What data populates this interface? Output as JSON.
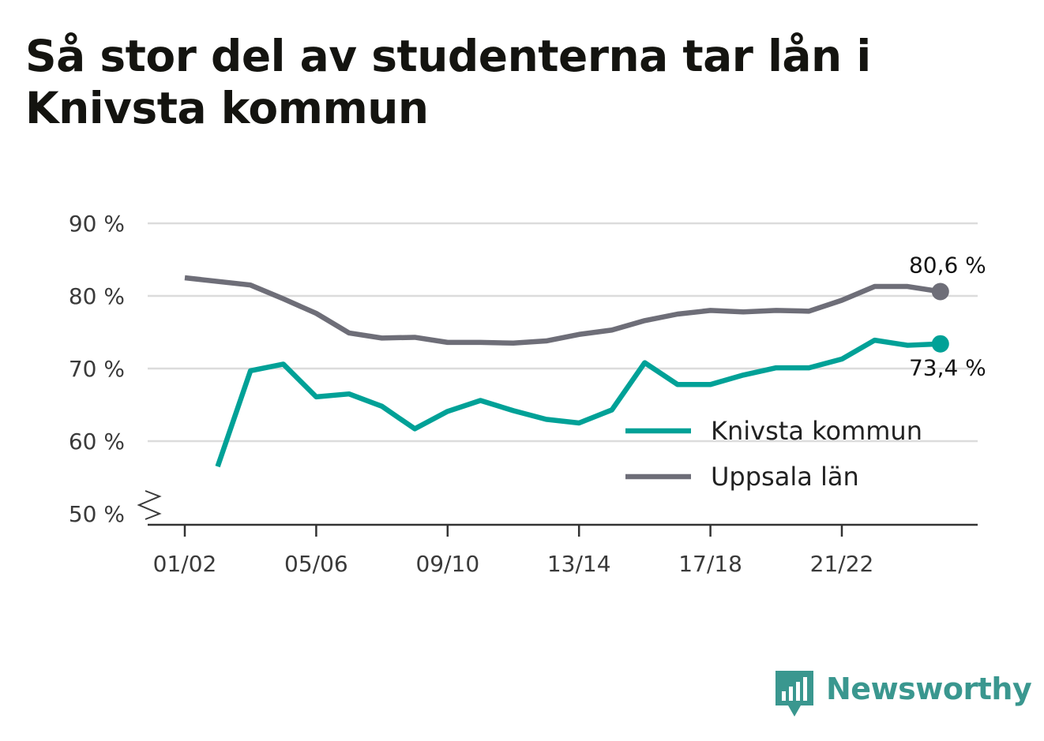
{
  "title": "Så stor del av studenterna tar lån i Knivsta kommun",
  "brand": {
    "name": "Newsworthy",
    "icon": "newsworthy-logo-icon",
    "color": "#3a978f"
  },
  "chart_data": {
    "type": "line",
    "title": "Så stor del av studenterna tar lån i Knivsta kommun",
    "xlabel": "",
    "ylabel": "",
    "ylim": [
      50,
      90
    ],
    "y_axis_break": true,
    "yticks": [
      50,
      60,
      70,
      80,
      90
    ],
    "ytick_labels": [
      "50 %",
      "60 %",
      "70 %",
      "80 %",
      "90 %"
    ],
    "grid": true,
    "legend_position": "bottom-right",
    "x": [
      "01/02",
      "02/03",
      "03/04",
      "04/05",
      "05/06",
      "06/07",
      "07/08",
      "08/09",
      "09/10",
      "10/11",
      "11/12",
      "12/13",
      "13/14",
      "14/15",
      "15/16",
      "16/17",
      "17/18",
      "18/19",
      "19/20",
      "20/21",
      "21/22",
      "22/23",
      "23/24",
      "24/25"
    ],
    "xticks": [
      "01/02",
      "05/06",
      "09/10",
      "13/14",
      "17/18",
      "21/22"
    ],
    "series": [
      {
        "name": "Knivsta kommun",
        "color": "#00a197",
        "values": [
          null,
          56.5,
          69.7,
          70.6,
          66.1,
          66.5,
          64.8,
          61.7,
          64.1,
          65.6,
          64.2,
          63.0,
          62.5,
          64.3,
          70.8,
          67.8,
          67.8,
          69.1,
          70.1,
          70.1,
          71.3,
          73.9,
          73.2,
          73.4
        ],
        "end_label": "73,4 %"
      },
      {
        "name": "Uppsala län",
        "color": "#6e6e78",
        "values": [
          82.5,
          null,
          81.5,
          79.6,
          77.6,
          74.9,
          74.2,
          74.3,
          73.6,
          73.6,
          73.5,
          73.8,
          74.7,
          75.3,
          76.6,
          77.5,
          78.0,
          77.8,
          78.0,
          77.9,
          79.4,
          81.3,
          81.3,
          80.6
        ],
        "end_label": "80,6 %"
      }
    ]
  }
}
